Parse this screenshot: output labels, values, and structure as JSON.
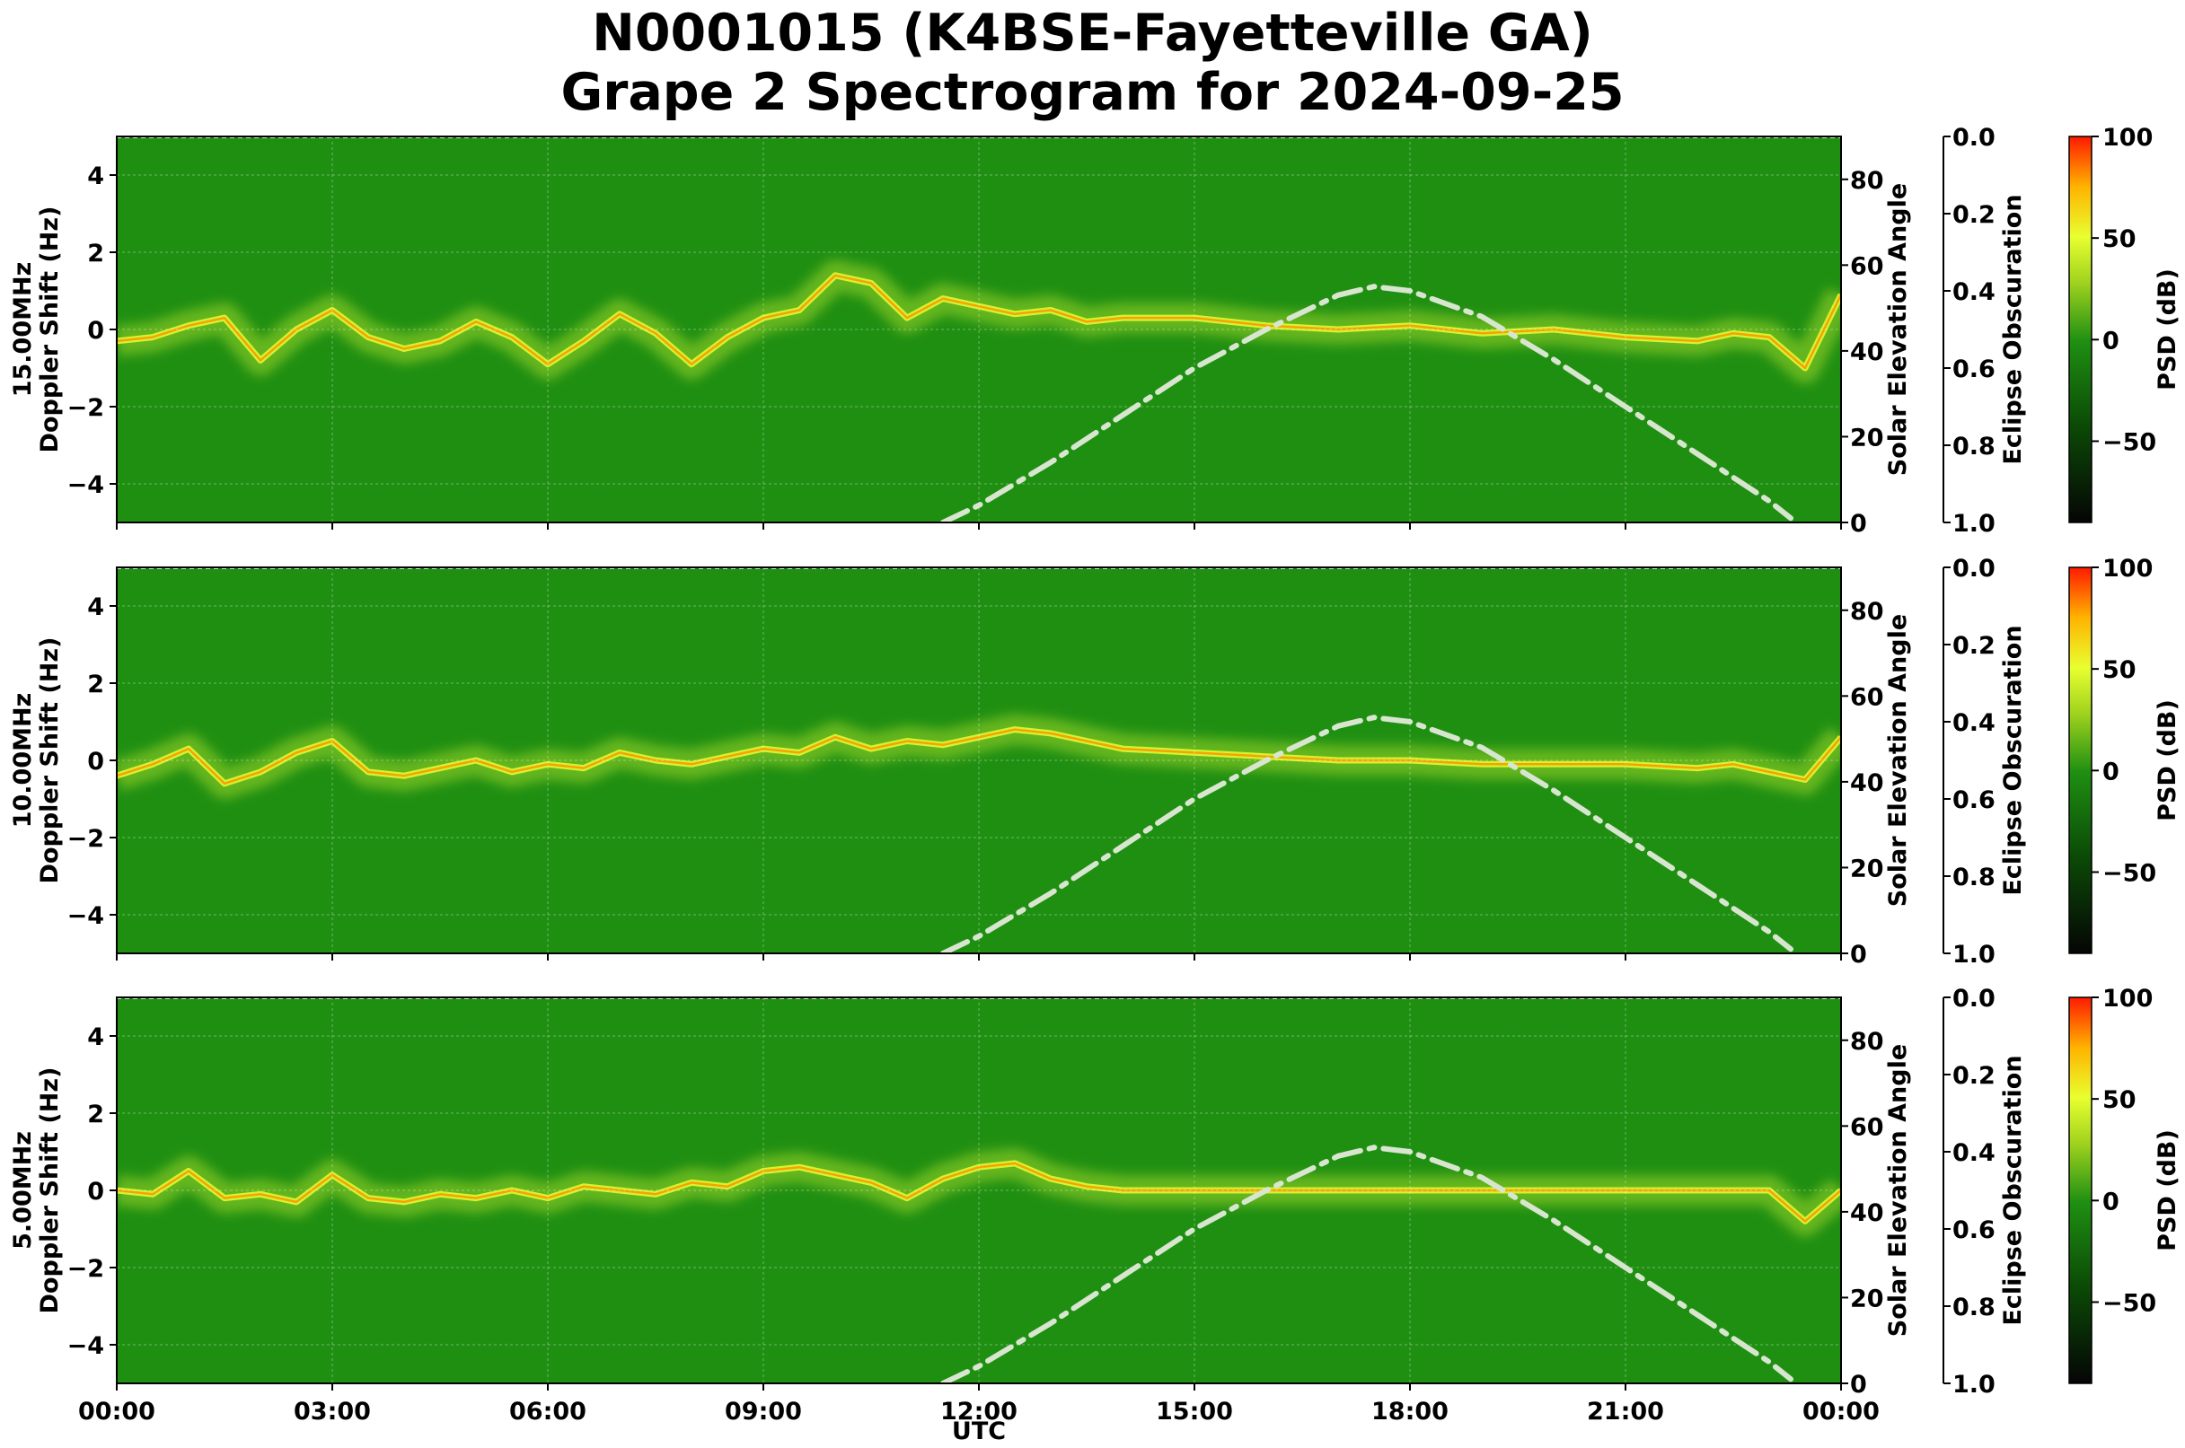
{
  "figure": {
    "title_line1": "N0001015 (K4BSE-Fayetteville GA)",
    "title_line2": "Grape 2 Spectrogram for 2024-09-25",
    "x_axis_label": "UTC"
  },
  "colors": {
    "background_green": "#1f8f12",
    "signal_yellow": "#e8ff30",
    "signal_orange": "#ff8c00",
    "solar_curve": "#d8e6d0"
  },
  "chart_data": [
    {
      "type": "heatmap",
      "frequency_label": "15.00MHz",
      "ylabel": "Doppler Shift (Hz)",
      "ylim": [
        -5,
        5
      ],
      "yticks": [
        4,
        2,
        0,
        -2,
        -4
      ],
      "xlim": [
        "00:00",
        "24:00"
      ],
      "xticks": [
        "00:00",
        "03:00",
        "06:00",
        "09:00",
        "12:00",
        "15:00",
        "18:00",
        "21:00",
        "00:00"
      ],
      "right_axis_1": {
        "label": "Solar Elevation Angle",
        "range": [
          0,
          90
        ],
        "ticks": [
          0,
          20,
          40,
          60,
          80
        ]
      },
      "right_axis_2": {
        "label": "Eclipse Obscuration",
        "range": [
          1.0,
          0.0
        ],
        "ticks": [
          "0.0",
          "0.2",
          "0.4",
          "0.6",
          "0.8",
          "1.0"
        ]
      },
      "colorbar": {
        "label": "PSD (dB)",
        "range": [
          -90,
          100
        ],
        "ticks": [
          100,
          50,
          0,
          -50
        ]
      },
      "doppler_trace": {
        "hours": [
          0,
          0.5,
          1,
          1.5,
          2,
          2.5,
          3,
          3.5,
          4,
          4.5,
          5,
          5.5,
          6,
          6.5,
          7,
          7.5,
          8,
          8.5,
          9,
          9.5,
          10,
          10.5,
          11,
          11.5,
          12,
          12.5,
          13,
          13.5,
          14,
          15,
          16,
          17,
          18,
          19,
          20,
          21,
          22,
          22.5,
          23,
          23.5,
          24
        ],
        "hz": [
          -0.3,
          -0.2,
          0.1,
          0.3,
          -0.8,
          0.0,
          0.5,
          -0.2,
          -0.5,
          -0.3,
          0.2,
          -0.2,
          -0.9,
          -0.3,
          0.4,
          -0.1,
          -0.9,
          -0.2,
          0.3,
          0.5,
          1.4,
          1.2,
          0.3,
          0.8,
          0.6,
          0.4,
          0.5,
          0.2,
          0.3,
          0.3,
          0.1,
          0.0,
          0.1,
          -0.1,
          0.0,
          -0.2,
          -0.3,
          -0.1,
          -0.2,
          -1.0,
          0.9
        ]
      },
      "solar_elevation": {
        "hours": [
          11.5,
          12,
          13,
          14,
          15,
          16,
          17,
          17.5,
          18,
          19,
          20,
          21,
          22,
          23,
          23.3
        ],
        "degrees": [
          0,
          4,
          14,
          25,
          36,
          45,
          53,
          55,
          54,
          48,
          38,
          27,
          16,
          5,
          1
        ]
      }
    },
    {
      "type": "heatmap",
      "frequency_label": "10.00MHz",
      "ylabel": "Doppler Shift (Hz)",
      "ylim": [
        -5,
        5
      ],
      "yticks": [
        4,
        2,
        0,
        -2,
        -4
      ],
      "xlim": [
        "00:00",
        "24:00"
      ],
      "xticks": [
        "00:00",
        "03:00",
        "06:00",
        "09:00",
        "12:00",
        "15:00",
        "18:00",
        "21:00",
        "00:00"
      ],
      "right_axis_1": {
        "label": "Solar Elevation Angle",
        "range": [
          0,
          90
        ],
        "ticks": [
          0,
          20,
          40,
          60,
          80
        ]
      },
      "right_axis_2": {
        "label": "Eclipse Obscuration",
        "range": [
          1.0,
          0.0
        ],
        "ticks": [
          "0.0",
          "0.2",
          "0.4",
          "0.6",
          "0.8",
          "1.0"
        ]
      },
      "colorbar": {
        "label": "PSD (dB)",
        "range": [
          -90,
          100
        ],
        "ticks": [
          100,
          50,
          0,
          -50
        ]
      },
      "doppler_trace": {
        "hours": [
          0,
          0.5,
          1,
          1.5,
          2,
          2.5,
          3,
          3.5,
          4,
          4.5,
          5,
          5.5,
          6,
          6.5,
          7,
          7.5,
          8,
          8.5,
          9,
          9.5,
          10,
          10.5,
          11,
          11.5,
          12,
          12.5,
          13,
          13.5,
          14,
          15,
          16,
          17,
          18,
          19,
          20,
          21,
          22,
          22.5,
          23,
          23.5,
          24
        ],
        "hz": [
          -0.4,
          -0.1,
          0.3,
          -0.6,
          -0.3,
          0.2,
          0.5,
          -0.3,
          -0.4,
          -0.2,
          0.0,
          -0.3,
          -0.1,
          -0.2,
          0.2,
          0.0,
          -0.1,
          0.1,
          0.3,
          0.2,
          0.6,
          0.3,
          0.5,
          0.4,
          0.6,
          0.8,
          0.7,
          0.5,
          0.3,
          0.2,
          0.1,
          0.0,
          0.0,
          -0.1,
          -0.1,
          -0.1,
          -0.2,
          -0.1,
          -0.3,
          -0.5,
          0.6
        ]
      },
      "solar_elevation": {
        "hours": [
          11.5,
          12,
          13,
          14,
          15,
          16,
          17,
          17.5,
          18,
          19,
          20,
          21,
          22,
          23,
          23.3
        ],
        "degrees": [
          0,
          4,
          14,
          25,
          36,
          45,
          53,
          55,
          54,
          48,
          38,
          27,
          16,
          5,
          1
        ]
      }
    },
    {
      "type": "heatmap",
      "frequency_label": "5.00MHz",
      "ylabel": "Doppler Shift (Hz)",
      "ylim": [
        -5,
        5
      ],
      "yticks": [
        4,
        2,
        0,
        -2,
        -4
      ],
      "xlim": [
        "00:00",
        "24:00"
      ],
      "xticks": [
        "00:00",
        "03:00",
        "06:00",
        "09:00",
        "12:00",
        "15:00",
        "18:00",
        "21:00",
        "00:00"
      ],
      "right_axis_1": {
        "label": "Solar Elevation Angle",
        "range": [
          0,
          90
        ],
        "ticks": [
          0,
          20,
          40,
          60,
          80
        ]
      },
      "right_axis_2": {
        "label": "Eclipse Obscuration",
        "range": [
          1.0,
          0.0
        ],
        "ticks": [
          "0.0",
          "0.2",
          "0.4",
          "0.6",
          "0.8",
          "1.0"
        ]
      },
      "colorbar": {
        "label": "PSD (dB)",
        "range": [
          -90,
          100
        ],
        "ticks": [
          100,
          50,
          0,
          -50
        ]
      },
      "doppler_trace": {
        "hours": [
          0,
          0.5,
          1,
          1.5,
          2,
          2.5,
          3,
          3.5,
          4,
          4.5,
          5,
          5.5,
          6,
          6.5,
          7,
          7.5,
          8,
          8.5,
          9,
          9.5,
          10,
          10.5,
          11,
          11.5,
          12,
          12.5,
          13,
          13.5,
          14,
          15,
          16,
          17,
          18,
          19,
          20,
          21,
          22,
          22.5,
          23,
          23.5,
          24
        ],
        "hz": [
          0.0,
          -0.1,
          0.5,
          -0.2,
          -0.1,
          -0.3,
          0.4,
          -0.2,
          -0.3,
          -0.1,
          -0.2,
          0.0,
          -0.2,
          0.1,
          0.0,
          -0.1,
          0.2,
          0.1,
          0.5,
          0.6,
          0.4,
          0.2,
          -0.2,
          0.3,
          0.6,
          0.7,
          0.3,
          0.1,
          0.0,
          0.0,
          0.0,
          0.0,
          0.0,
          0.0,
          0.0,
          0.0,
          0.0,
          0.0,
          0.0,
          -0.8,
          0.0
        ]
      },
      "solar_elevation": {
        "hours": [
          11.5,
          12,
          13,
          14,
          15,
          16,
          17,
          17.5,
          18,
          19,
          20,
          21,
          22,
          23,
          23.3
        ],
        "degrees": [
          0,
          4,
          14,
          25,
          36,
          45,
          53,
          55,
          54,
          48,
          38,
          27,
          16,
          5,
          1
        ]
      }
    }
  ]
}
